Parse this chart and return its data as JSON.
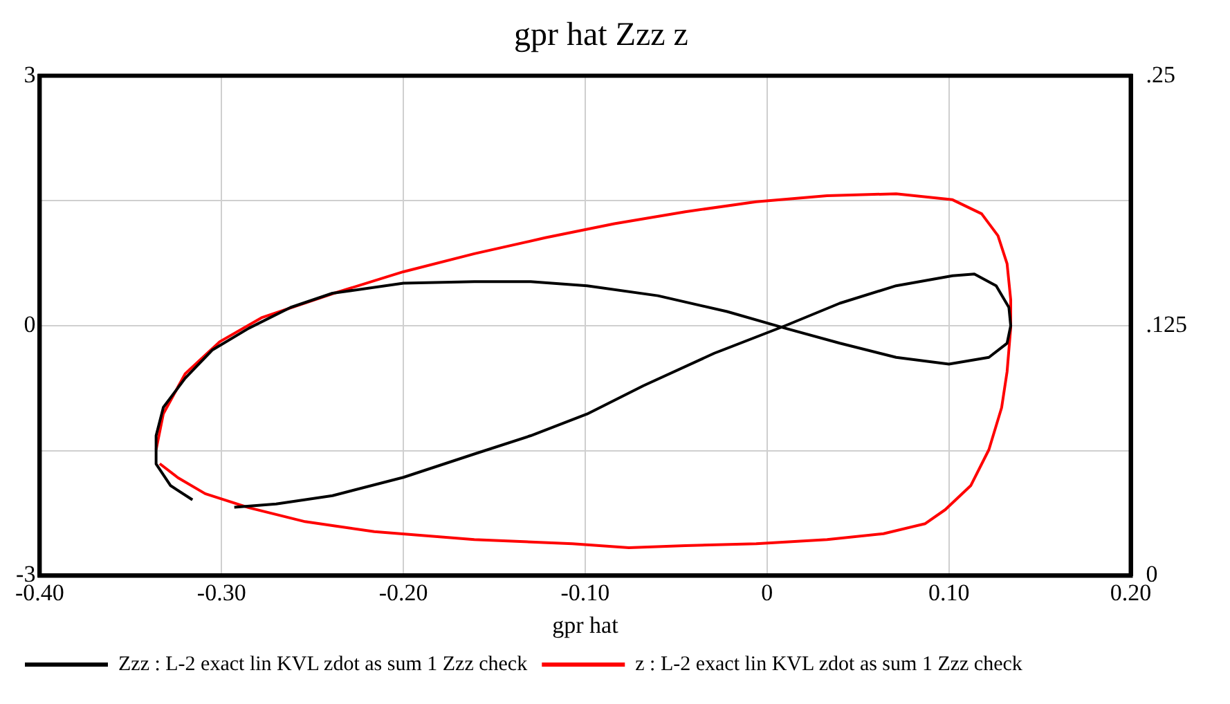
{
  "chart_data": {
    "type": "line",
    "title": "gpr hat Zzz z",
    "xlabel": "gpr hat",
    "xlim": [
      -0.4,
      0.2
    ],
    "xticks": [
      {
        "value": -0.4,
        "label": "-0.40"
      },
      {
        "value": -0.3,
        "label": "-0.30"
      },
      {
        "value": -0.2,
        "label": "-0.20"
      },
      {
        "value": -0.1,
        "label": "-0.10"
      },
      0,
      {
        "value": 0.1,
        "label": "0.10"
      },
      {
        "value": 0.2,
        "label": "0.20"
      }
    ],
    "ylim": [
      -3,
      3
    ],
    "yticks": [
      -3,
      {
        "value": -1.5,
        "label": null
      },
      0,
      {
        "value": 1.5,
        "label": null
      },
      3
    ],
    "y2lim": [
      0,
      0.25
    ],
    "y2ticks": [
      {
        "value": 0,
        "label": "0"
      },
      {
        "value": 0.0625,
        "label": null
      },
      {
        "value": 0.125,
        "label": ".125"
      },
      {
        "value": 0.1875,
        "label": null
      },
      {
        "value": 0.25,
        "label": ".25"
      }
    ],
    "grid": true,
    "legend": "bottom",
    "marker": "none",
    "line_style": "solid",
    "series": [
      {
        "name": "Zzz : L-2 exact lin KVL zdot as sum 1 Zzz check",
        "color": "#000000",
        "axis": "y",
        "x": [
          -0.293,
          -0.27,
          -0.239,
          -0.2,
          -0.161,
          -0.13,
          -0.099,
          -0.068,
          -0.029,
          0.01,
          0.04,
          0.071,
          0.102,
          0.114,
          0.126,
          0.133,
          0.134,
          0.132,
          0.122,
          0.1,
          0.071,
          0.04,
          0.01,
          -0.022,
          -0.06,
          -0.099,
          -0.13,
          -0.161,
          -0.2,
          -0.239,
          -0.262,
          -0.285,
          -0.305,
          -0.32,
          -0.332,
          -0.336,
          -0.336,
          -0.328,
          -0.316
        ],
        "values": [
          -2.18,
          -2.14,
          -2.04,
          -1.82,
          -1.54,
          -1.32,
          -1.06,
          -0.72,
          -0.33,
          0.0,
          0.27,
          0.48,
          0.6,
          0.62,
          0.48,
          0.22,
          0.0,
          -0.21,
          -0.38,
          -0.46,
          -0.38,
          -0.21,
          -0.03,
          0.17,
          0.36,
          0.48,
          0.53,
          0.53,
          0.51,
          0.39,
          0.22,
          -0.03,
          -0.29,
          -0.63,
          -0.98,
          -1.32,
          -1.66,
          -1.92,
          -2.09
        ]
      },
      {
        "name": "z : L-2 exact lin KVL zdot as sum 1 Zzz check",
        "color": "#ff0000",
        "axis": "y2",
        "x": [
          -0.336,
          -0.332,
          -0.32,
          -0.301,
          -0.278,
          -0.239,
          -0.2,
          -0.161,
          -0.122,
          -0.084,
          -0.045,
          -0.006,
          0.033,
          0.071,
          0.102,
          0.118,
          0.127,
          0.132,
          0.134,
          0.134,
          0.132,
          0.129,
          0.122,
          0.112,
          0.098,
          0.087,
          0.064,
          0.033,
          -0.006,
          -0.045,
          -0.076,
          -0.107,
          -0.161,
          -0.216,
          -0.254,
          -0.285,
          -0.309,
          -0.324,
          -0.334
        ],
        "values": [
          0.063,
          0.081,
          0.101,
          0.117,
          0.129,
          0.141,
          0.152,
          0.161,
          0.169,
          0.176,
          0.182,
          0.187,
          0.19,
          0.191,
          0.188,
          0.181,
          0.17,
          0.156,
          0.138,
          0.124,
          0.102,
          0.084,
          0.063,
          0.045,
          0.033,
          0.026,
          0.021,
          0.018,
          0.016,
          0.015,
          0.014,
          0.016,
          0.018,
          0.022,
          0.027,
          0.034,
          0.041,
          0.049,
          0.056
        ]
      }
    ]
  }
}
